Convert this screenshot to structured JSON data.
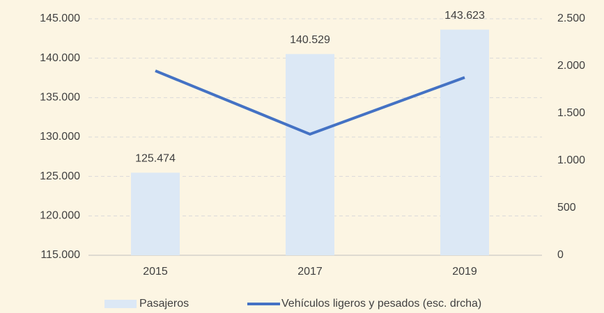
{
  "chart_data": {
    "type": "bar_line",
    "categories": [
      "2015",
      "2017",
      "2019"
    ],
    "series": [
      {
        "name": "Pasajeros",
        "type": "bar",
        "color": "#dce8f5",
        "values": [
          125474,
          140529,
          143623
        ],
        "value_labels": [
          "125.474",
          "140.529",
          "143.623"
        ]
      },
      {
        "name": "Vehículos ligeros y pesados (esc. drcha)",
        "type": "line",
        "axis": "y2",
        "color": "#4472c4",
        "values": [
          1950,
          1280,
          1880
        ]
      }
    ],
    "ylim": [
      115000,
      145000
    ],
    "yticks": [
      {
        "value": 115000,
        "label": "115.000"
      },
      {
        "value": 120000,
        "label": "120.000"
      },
      {
        "value": 125000,
        "label": "125.000"
      },
      {
        "value": 130000,
        "label": "130.000"
      },
      {
        "value": 135000,
        "label": "135.000"
      },
      {
        "value": 140000,
        "label": "140.000"
      },
      {
        "value": 145000,
        "label": "145.000"
      }
    ],
    "y2lim": [
      0,
      2500
    ],
    "y2ticks": [
      0,
      500,
      {
        "value": 1000,
        "label": "1.000"
      },
      {
        "value": 1500,
        "label": "1.500"
      },
      {
        "value": 2000,
        "label": "2.000"
      },
      {
        "value": 2500,
        "label": "2.500"
      }
    ],
    "grid": true,
    "legend": "bottom"
  }
}
